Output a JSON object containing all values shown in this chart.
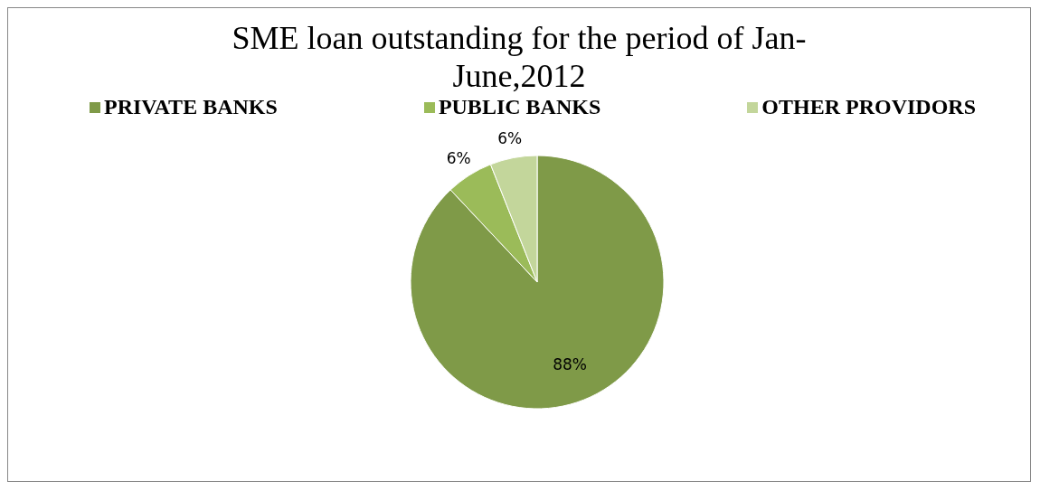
{
  "chart_data": {
    "type": "pie",
    "title": "SME loan outstanding for the period of Jan-June,2012",
    "categories": [
      "PRIVATE BANKS",
      "PUBLIC BANKS",
      "OTHER PROVIDORS"
    ],
    "values": [
      88,
      6,
      6
    ],
    "colors": [
      "#7f9a48",
      "#9bbb59",
      "#c3d69b"
    ],
    "value_labels": [
      "88%",
      "6%",
      "6%"
    ],
    "legend": "top"
  }
}
